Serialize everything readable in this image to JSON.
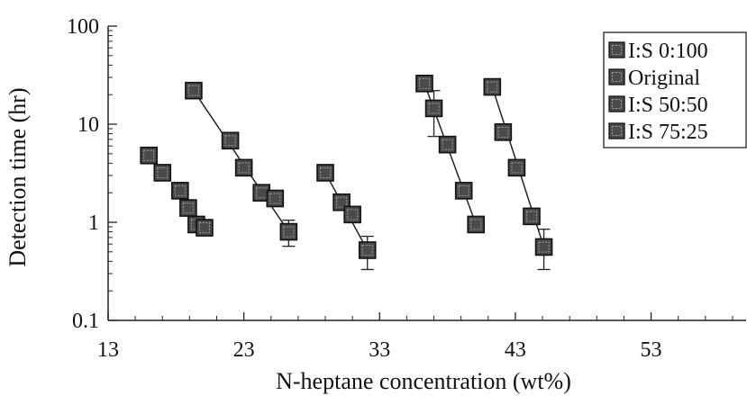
{
  "chart_data": {
    "type": "scatter",
    "xlabel": "N-heptane concentration (wt%)",
    "ylabel": "Detection time  (hr)",
    "xlim": [
      13,
      60
    ],
    "ylim": [
      0.1,
      100
    ],
    "yscale": "log",
    "x_ticks": [
      13,
      23,
      33,
      43,
      53
    ],
    "x_tick_labels": [
      "13",
      "23",
      "33",
      "43",
      "53"
    ],
    "y_ticks": [
      0.1,
      1,
      10,
      100
    ],
    "y_tick_labels": [
      "0.1",
      "1",
      "10",
      "100"
    ],
    "grid": false,
    "legend_position": "top-right",
    "marker_color": "#4a4a4a",
    "series": [
      {
        "name": "I:S 0:100",
        "points": [
          {
            "x": 16.0,
            "y": 4.8
          },
          {
            "x": 17.0,
            "y": 3.2
          },
          {
            "x": 18.3,
            "y": 2.1
          },
          {
            "x": 18.9,
            "y": 1.4
          },
          {
            "x": 19.5,
            "y": 0.95
          },
          {
            "x": 20.1,
            "y": 0.88
          }
        ],
        "trendline": false
      },
      {
        "name": "Original",
        "points": [
          {
            "x": 19.3,
            "y": 22
          },
          {
            "x": 22.0,
            "y": 6.8
          },
          {
            "x": 23.0,
            "y": 3.6
          },
          {
            "x": 24.3,
            "y": 2.0
          },
          {
            "x": 25.3,
            "y": 1.75
          },
          {
            "x": 26.3,
            "y": 0.8,
            "err": [
              0.57,
              1.05
            ]
          }
        ],
        "trendline": true
      },
      {
        "name": "I:S 50:50",
        "points": [
          {
            "x": 29.0,
            "y": 3.2
          },
          {
            "x": 30.2,
            "y": 1.6
          },
          {
            "x": 31.0,
            "y": 1.2
          },
          {
            "x": 32.1,
            "y": 0.52,
            "err": [
              0.33,
              0.72
            ]
          }
        ],
        "trendline": true
      },
      {
        "name": "I:S 75:25",
        "points": [
          {
            "x": 36.3,
            "y": 26
          },
          {
            "x": 37.0,
            "y": 14.5,
            "err": [
              7.5,
              22
            ]
          },
          {
            "x": 38.0,
            "y": 6.2
          },
          {
            "x": 39.2,
            "y": 2.1
          },
          {
            "x": 40.1,
            "y": 0.95
          }
        ],
        "trendline": true
      },
      {
        "name": "",
        "points": [
          {
            "x": 41.3,
            "y": 24
          },
          {
            "x": 42.1,
            "y": 8.3
          },
          {
            "x": 43.1,
            "y": 3.6
          },
          {
            "x": 44.2,
            "y": 1.15
          },
          {
            "x": 45.1,
            "y": 0.56,
            "err": [
              0.33,
              0.85
            ]
          }
        ],
        "trendline": true
      }
    ]
  }
}
